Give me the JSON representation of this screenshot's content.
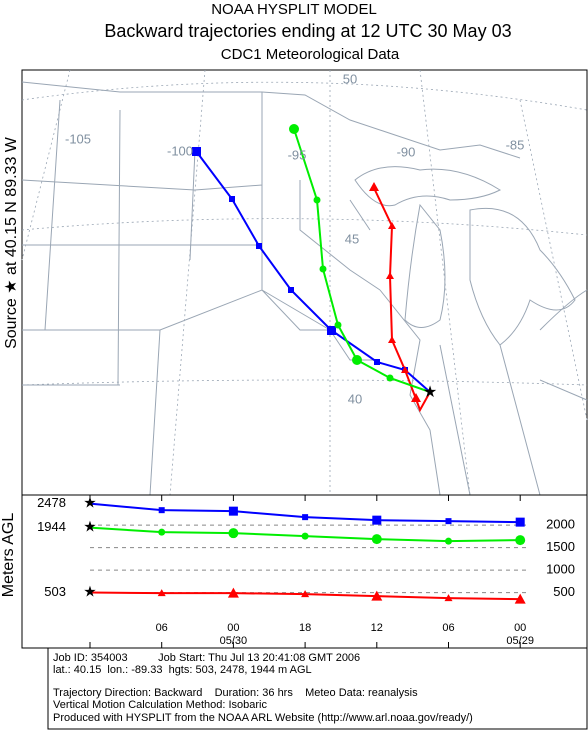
{
  "header": {
    "title": "NOAA HYSPLIT MODEL",
    "subtitle": "Backward trajectories ending at 12 UTC 30 May 03",
    "data_source": "CDC1 Meteorological Data"
  },
  "map": {
    "source_label": "Source ★ at 40.15 N 89.33 W",
    "grid_labels": [
      "-105",
      "-100",
      "-95",
      "-90",
      "-85",
      "50",
      "45",
      "40"
    ]
  },
  "chart_data": {
    "type": "line",
    "y_label": "Meters AGL",
    "categories": [
      null,
      "06",
      "00",
      "18",
      "12",
      "06",
      "00"
    ],
    "dates": [
      null,
      null,
      "05/30",
      null,
      null,
      null,
      "05/29"
    ],
    "ylim": [
      -730,
      2670
    ],
    "yticks": [
      500,
      1000,
      1500,
      2000
    ],
    "series": [
      {
        "color": "#ff0000",
        "marker": "triangle",
        "values": [
          503,
          489,
          489,
          467,
          422,
          378,
          356
        ]
      },
      {
        "color": "#0000ff",
        "marker": "square",
        "values": [
          2478,
          2333,
          2311,
          2178,
          2111,
          2089,
          2067
        ]
      },
      {
        "color": "#00ee00",
        "marker": "circle",
        "values": [
          1944,
          1844,
          1822,
          1756,
          1689,
          1644,
          1667
        ]
      }
    ]
  },
  "footer": {
    "lines": [
      "Job ID: 354003          Job Start: Thu Jul 13 20:41:08 GMT 2006",
      "lat.: 40.15  lon.: -89.33  hgts: 503, 2478, 1944 m AGL",
      "Trajectory Direction: Backward    Duration: 36 hrs    Meteo Data: reanalysis",
      "Vertical Motion Calculation Method: Isobaric",
      "Produced with HYSPLIT from the NOAA ARL Website (http://www.arl.noaa.gov/ready/)"
    ]
  }
}
